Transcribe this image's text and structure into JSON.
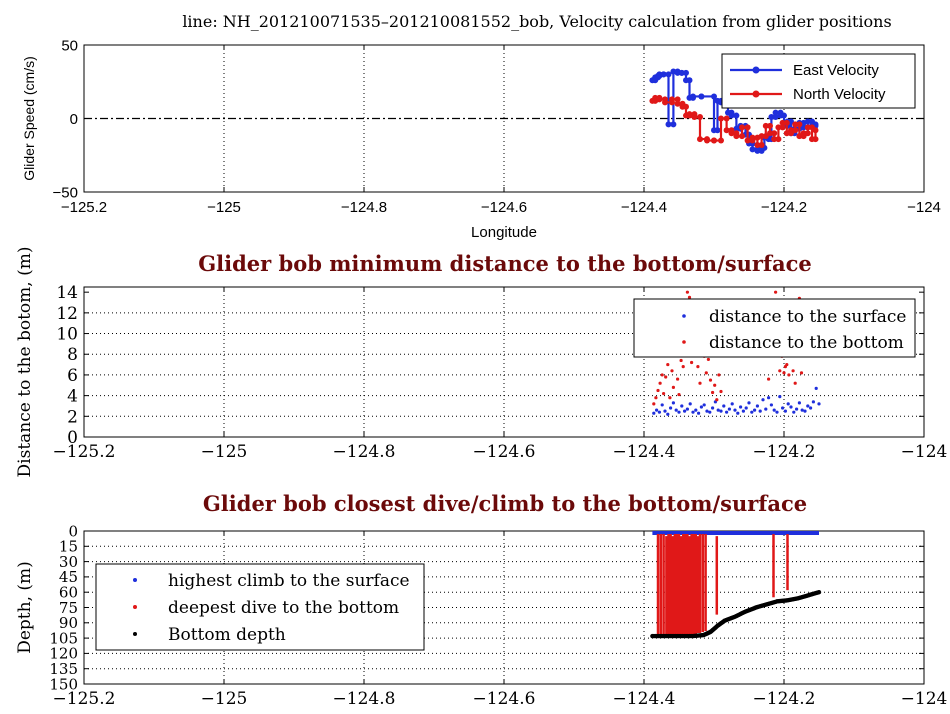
{
  "header": {
    "title": "line: NH_201210071535–201210081552_bob, Velocity calculation from glider positions"
  },
  "colors": {
    "east": "#1f2fdc",
    "north": "#e01818",
    "surface": "#1f2fdc",
    "dive": "#e01818",
    "bottom": "#000000",
    "panel_title": "#6b0a0a"
  },
  "chart_data": [
    {
      "id": "velocity",
      "type": "line",
      "title": "",
      "xlabel": "Longitude",
      "ylabel": "Glider Speed (cm/s)",
      "xlim": [
        -125.2,
        -124.0
      ],
      "ylim": [
        -50,
        50
      ],
      "xticks": [
        -125.2,
        -125,
        -124.8,
        -124.6,
        -124.4,
        -124.2,
        -124
      ],
      "xtick_labels": [
        "−125.2",
        "−125",
        "−124.8",
        "−124.6",
        "−124.4",
        "−124.2",
        "−124"
      ],
      "yticks": [
        -50,
        0,
        50
      ],
      "ytick_labels": [
        "−50",
        "0",
        "50"
      ],
      "grid": "vertical dotted",
      "zero_line": "dash-dot",
      "legend": "top-right",
      "series": [
        {
          "name": "East Velocity",
          "style": "step",
          "x": [
            -124.388,
            -124.384,
            -124.38,
            -124.378,
            -124.372,
            -124.365,
            -124.358,
            -124.352,
            -124.346,
            -124.34,
            -124.335,
            -124.33,
            -124.318,
            -124.3,
            -124.295,
            -124.29,
            -124.28,
            -124.275,
            -124.268,
            -124.262,
            -124.255,
            -124.25,
            -124.245,
            -124.238,
            -124.232,
            -124.228,
            -124.222,
            -124.218,
            -124.212,
            -124.205,
            -124.2,
            -124.195,
            -124.19,
            -124.185,
            -124.178,
            -124.172,
            -124.166,
            -124.16,
            -124.155
          ],
          "y": [
            26,
            28,
            29,
            30,
            30,
            -4,
            32,
            31,
            31,
            26,
            14,
            15,
            15,
            -8,
            12,
            11,
            4,
            2,
            -7,
            -5,
            -11,
            -17,
            -21,
            -22,
            -20,
            -13,
            -14,
            1,
            4,
            2,
            -5,
            -2,
            -10,
            -7,
            -3,
            -6,
            -2,
            -5,
            -4
          ]
        },
        {
          "name": "North Velocity",
          "style": "step",
          "x": [
            -124.388,
            -124.384,
            -124.378,
            -124.37,
            -124.36,
            -124.352,
            -124.345,
            -124.34,
            -124.335,
            -124.328,
            -124.32,
            -124.31,
            -124.3,
            -124.29,
            -124.282,
            -124.275,
            -124.268,
            -124.26,
            -124.252,
            -124.245,
            -124.238,
            -124.232,
            -124.226,
            -124.22,
            -124.214,
            -124.208,
            -124.202,
            -124.196,
            -124.19,
            -124.184,
            -124.178,
            -124.172,
            -124.166,
            -124.16,
            -124.155
          ],
          "y": [
            12,
            14,
            13,
            11,
            13,
            10,
            8,
            2,
            3,
            1,
            -14,
            -15,
            -15,
            0,
            -8,
            -10,
            -12,
            -6,
            -15,
            -13,
            -18,
            -12,
            -5,
            -10,
            -14,
            -6,
            -3,
            -10,
            -8,
            -4,
            -12,
            -10,
            -6,
            -14,
            -8
          ]
        }
      ]
    },
    {
      "id": "distance",
      "type": "scatter",
      "title": "Glider bob minimum distance to the bottom/surface",
      "xlabel": "",
      "ylabel": "Distance to the botom, (m)",
      "xlim": [
        -125.2,
        -124.0
      ],
      "ylim": [
        0,
        14.5
      ],
      "xticks": [
        -125.2,
        -125,
        -124.8,
        -124.6,
        -124.4,
        -124.2,
        -124
      ],
      "xtick_labels": [
        "−125.2",
        "−125",
        "−124.8",
        "−124.6",
        "−124.4",
        "−124.2",
        "−124"
      ],
      "yticks": [
        0,
        2,
        4,
        6,
        8,
        10,
        12,
        14
      ],
      "ytick_labels": [
        "0",
        "2",
        "4",
        "6",
        "8",
        "10",
        "12",
        "14"
      ],
      "grid": "dotted",
      "legend": "top-right",
      "series": [
        {
          "name": "distance to the surface",
          "x": [
            -124.386,
            -124.382,
            -124.378,
            -124.374,
            -124.37,
            -124.366,
            -124.362,
            -124.358,
            -124.354,
            -124.35,
            -124.346,
            -124.342,
            -124.338,
            -124.334,
            -124.33,
            -124.326,
            -124.322,
            -124.318,
            -124.314,
            -124.31,
            -124.306,
            -124.302,
            -124.298,
            -124.294,
            -124.29,
            -124.286,
            -124.282,
            -124.278,
            -124.274,
            -124.27,
            -124.266,
            -124.262,
            -124.258,
            -124.254,
            -124.25,
            -124.246,
            -124.242,
            -124.238,
            -124.234,
            -124.23,
            -124.226,
            -124.222,
            -124.218,
            -124.214,
            -124.21,
            -124.206,
            -124.202,
            -124.198,
            -124.194,
            -124.19,
            -124.186,
            -124.182,
            -124.178,
            -124.174,
            -124.17,
            -124.166,
            -124.162,
            -124.158,
            -124.154,
            -124.15
          ],
          "y": [
            2.3,
            2.6,
            2.4,
            3.1,
            2.5,
            2.2,
            2.8,
            3.3,
            2.6,
            2.4,
            3.0,
            2.5,
            2.7,
            3.2,
            2.4,
            2.6,
            2.3,
            2.9,
            3.1,
            2.5,
            2.4,
            2.8,
            3.4,
            2.6,
            2.5,
            3.0,
            2.4,
            2.7,
            3.2,
            2.6,
            2.3,
            2.9,
            2.5,
            2.8,
            3.3,
            2.4,
            2.6,
            3.0,
            2.5,
            3.6,
            2.7,
            3.8,
            3.1,
            2.6,
            2.4,
            3.9,
            2.8,
            2.5,
            3.2,
            2.9,
            2.4,
            2.7,
            3.3,
            2.6,
            2.5,
            3.0,
            2.8,
            3.4,
            4.7,
            3.2
          ]
        },
        {
          "name": "distance to the bottom",
          "x": [
            -124.386,
            -124.383,
            -124.38,
            -124.377,
            -124.374,
            -124.372,
            -124.369,
            -124.366,
            -124.363,
            -124.36,
            -124.358,
            -124.355,
            -124.352,
            -124.35,
            -124.347,
            -124.344,
            -124.341,
            -124.338,
            -124.335,
            -124.332,
            -124.329,
            -124.326,
            -124.323,
            -124.32,
            -124.317,
            -124.314,
            -124.311,
            -124.308,
            -124.305,
            -124.302,
            -124.299,
            -124.296,
            -124.293,
            -124.29,
            -124.225,
            -124.222,
            -124.212,
            -124.209,
            -124.206,
            -124.203,
            -124.2,
            -124.198,
            -124.196,
            -124.193,
            -124.19,
            -124.187,
            -124.184,
            -124.178,
            -124.175,
            -124.172
          ],
          "y": [
            3.2,
            3.8,
            4.5,
            5.2,
            6.0,
            4.2,
            5.8,
            7.0,
            3.8,
            6.4,
            4.8,
            8.0,
            5.6,
            4.1,
            7.4,
            6.8,
            9.6,
            14.0,
            13.5,
            7.2,
            10.5,
            9.2,
            6.8,
            5.2,
            8.4,
            7.8,
            6.2,
            7.5,
            5.5,
            4.3,
            5.0,
            3.6,
            6.0,
            4.4,
            9.2,
            5.6,
            14.0,
            11.2,
            6.4,
            7.8,
            6.2,
            6.8,
            7.0,
            6.0,
            9.8,
            6.4,
            5.2,
            13.4,
            6.2,
            10.2
          ]
        }
      ]
    },
    {
      "id": "depth",
      "type": "line",
      "title": "Glider bob closest dive/climb to the bottom/surface",
      "xlabel": "",
      "ylabel": "Depth, (m)",
      "xlim": [
        -125.2,
        -124.0
      ],
      "ylim": [
        150,
        0
      ],
      "y_reversed": true,
      "xticks": [
        -125.2,
        -125,
        -124.8,
        -124.6,
        -124.4,
        -124.2,
        -124
      ],
      "xtick_labels": [
        "−125.2",
        "−125",
        "−124.8",
        "−124.6",
        "−124.4",
        "−124.2",
        "−124"
      ],
      "yticks": [
        0,
        15,
        30,
        45,
        60,
        75,
        90,
        105,
        120,
        135,
        150
      ],
      "ytick_labels": [
        "0",
        "15",
        "30",
        "45",
        "60",
        "75",
        "90",
        "105",
        "120",
        "135",
        "150"
      ],
      "grid": "dotted",
      "legend": "left",
      "series": [
        {
          "name": "highest climb to the surface",
          "style": "line",
          "x": [
            -124.388,
            -124.15
          ],
          "y": [
            2,
            2
          ]
        },
        {
          "name": "deepest dive to the bottom",
          "style": "vertical-traces",
          "x": [
            -124.38,
            -124.376,
            -124.372,
            -124.368,
            -124.365,
            -124.362,
            -124.359,
            -124.356,
            -124.353,
            -124.35,
            -124.347,
            -124.344,
            -124.341,
            -124.338,
            -124.335,
            -124.332,
            -124.329,
            -124.326,
            -124.323,
            -124.32,
            -124.316,
            -124.312,
            -124.296,
            -124.215,
            -124.195
          ],
          "y_top": [
            3,
            3,
            3,
            5,
            3,
            3,
            5,
            3,
            3,
            3,
            5,
            3,
            3,
            3,
            5,
            3,
            3,
            3,
            5,
            3,
            3,
            3,
            5,
            3,
            3
          ],
          "y_bottom": [
            102,
            102,
            101,
            101,
            102,
            101,
            102,
            102,
            101,
            102,
            101,
            102,
            102,
            101,
            102,
            101,
            101,
            102,
            100,
            100,
            99,
            98,
            82,
            65,
            58
          ]
        },
        {
          "name": "Bottom depth",
          "style": "dots",
          "x": [
            -124.388,
            -124.37,
            -124.35,
            -124.33,
            -124.315,
            -124.305,
            -124.295,
            -124.285,
            -124.27,
            -124.255,
            -124.24,
            -124.225,
            -124.21,
            -124.195,
            -124.18,
            -124.165,
            -124.15
          ],
          "y": [
            103,
            103,
            103,
            103,
            102,
            99,
            93,
            88,
            84,
            79,
            75,
            72,
            69,
            68,
            66,
            63,
            60
          ]
        }
      ]
    }
  ]
}
